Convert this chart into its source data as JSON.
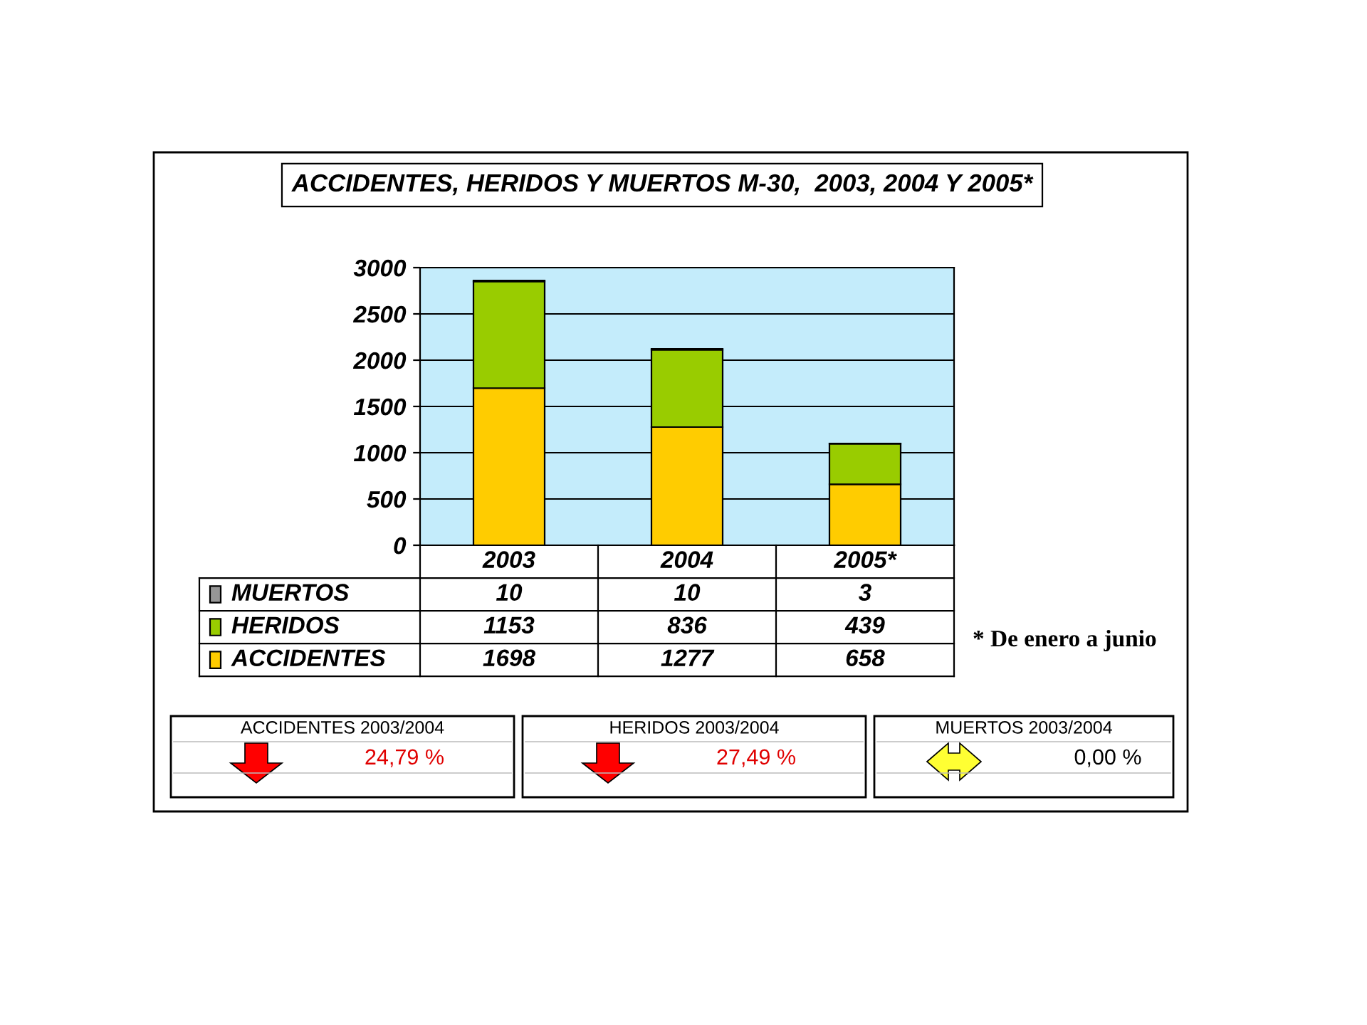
{
  "chart_data": {
    "type": "bar",
    "title": "ACCIDENTES, HERIDOS Y MUERTOS M-30,  2003, 2004 Y 2005*",
    "categories": [
      "2003",
      "2004",
      "2005*"
    ],
    "series": [
      {
        "name": "ACCIDENTES",
        "color": "#ffcc00",
        "values": [
          1698,
          1277,
          658
        ]
      },
      {
        "name": "HERIDOS",
        "color": "#99cc00",
        "values": [
          1153,
          836,
          439
        ]
      },
      {
        "name": "MUERTOS",
        "color": "#969696",
        "values": [
          10,
          10,
          3
        ]
      }
    ],
    "stacked": true,
    "data_labels": true,
    "legend": "bottom",
    "grid": "y",
    "ylim": [
      0,
      3000
    ],
    "yticks": [
      0,
      500,
      1000,
      1500,
      2000,
      2500,
      3000
    ],
    "annotations": [
      "* De enero a junio",
      "ACCIDENTES 2003/2004",
      "24,79 %",
      "HERIDOS 2003/2004",
      "27,49 %",
      "MUERTOS 2003/2004",
      "0,00 %"
    ]
  }
}
